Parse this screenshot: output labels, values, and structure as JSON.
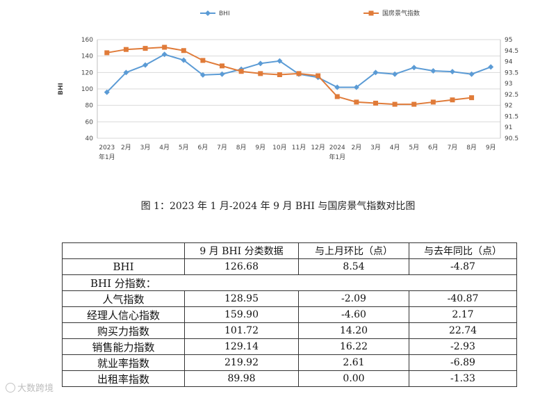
{
  "chart_data": {
    "type": "line",
    "x": [
      "2023年1月",
      "2月",
      "3月",
      "4月",
      "5月",
      "6月",
      "7月",
      "8月",
      "9月",
      "10月",
      "11月",
      "12月",
      "2024年1月",
      "2月",
      "3月",
      "4月",
      "5月",
      "6月",
      "7月",
      "8月",
      "9月"
    ],
    "x_tick_labels": [
      {
        "line1": "2023",
        "line2": "年1月"
      },
      {
        "line1": "2月",
        "line2": ""
      },
      {
        "line1": "3月",
        "line2": ""
      },
      {
        "line1": "4月",
        "line2": ""
      },
      {
        "line1": "5月",
        "line2": ""
      },
      {
        "line1": "6月",
        "line2": ""
      },
      {
        "line1": "7月",
        "line2": ""
      },
      {
        "line1": "8月",
        "line2": ""
      },
      {
        "line1": "9月",
        "line2": ""
      },
      {
        "line1": "10月",
        "line2": ""
      },
      {
        "line1": "11月",
        "line2": ""
      },
      {
        "line1": "12月",
        "line2": ""
      },
      {
        "line1": "2024",
        "line2": "年1月"
      },
      {
        "line1": "2月",
        "line2": ""
      },
      {
        "line1": "3月",
        "line2": ""
      },
      {
        "line1": "4月",
        "line2": ""
      },
      {
        "line1": "5月",
        "line2": ""
      },
      {
        "line1": "6月",
        "line2": ""
      },
      {
        "line1": "7月",
        "line2": ""
      },
      {
        "line1": "8月",
        "line2": ""
      },
      {
        "line1": "9月",
        "line2": ""
      }
    ],
    "series": [
      {
        "name": "BHI",
        "axis": "left",
        "color": "#5b9bd5",
        "marker": "diamond",
        "values": [
          96,
          120,
          129,
          142,
          135,
          117,
          118,
          124,
          131,
          134,
          118,
          114,
          102,
          102,
          120,
          118,
          126,
          122,
          121,
          118,
          126.68
        ]
      },
      {
        "name": "国房景气指数",
        "axis": "right",
        "color": "#e07b39",
        "marker": "square",
        "values": [
          94.4,
          94.55,
          94.6,
          94.65,
          94.5,
          94.05,
          93.8,
          93.55,
          93.45,
          93.4,
          93.45,
          93.35,
          92.4,
          92.15,
          92.1,
          92.05,
          92.05,
          92.15,
          92.25,
          92.35,
          null
        ]
      }
    ],
    "ylabel": "BHI",
    "ylim": [
      40,
      160
    ],
    "yticks": [
      40,
      60,
      80,
      100,
      120,
      140,
      160
    ],
    "y2lim": [
      90.5,
      95
    ],
    "y2ticks": [
      "90.5",
      "91",
      "91.5",
      "92",
      "92.5",
      "93",
      "93.5",
      "94",
      "94.5",
      "95"
    ],
    "grid": true,
    "legend_position": "top"
  },
  "caption": "图 1：2023 年 1 月-2024 年 9 月 BHI 与国房景气指数对比图",
  "table": {
    "headers": [
      "",
      "9 月 BHI 分类数据",
      "与上月环比（点）",
      "与去年同比（点）"
    ],
    "bhi_row": {
      "name": "BHI",
      "value": "126.68",
      "mom": "8.54",
      "yoy": "-4.87"
    },
    "section_label": "BHI 分指数：",
    "rows": [
      {
        "name": "人气指数",
        "value": "128.95",
        "mom": "-2.09",
        "yoy": "-40.87"
      },
      {
        "name": "经理人信心指数",
        "value": "159.90",
        "mom": "-4.60",
        "yoy": "2.17"
      },
      {
        "name": "购买力指数",
        "value": "101.72",
        "mom": "14.20",
        "yoy": "22.74"
      },
      {
        "name": "销售能力指数",
        "value": "129.14",
        "mom": "16.22",
        "yoy": "-2.93"
      },
      {
        "name": "就业率指数",
        "value": "219.92",
        "mom": "2.61",
        "yoy": "-6.89"
      },
      {
        "name": "出租率指数",
        "value": "89.98",
        "mom": "0.00",
        "yoy": "-1.33"
      }
    ]
  },
  "watermark": "大数跨境"
}
